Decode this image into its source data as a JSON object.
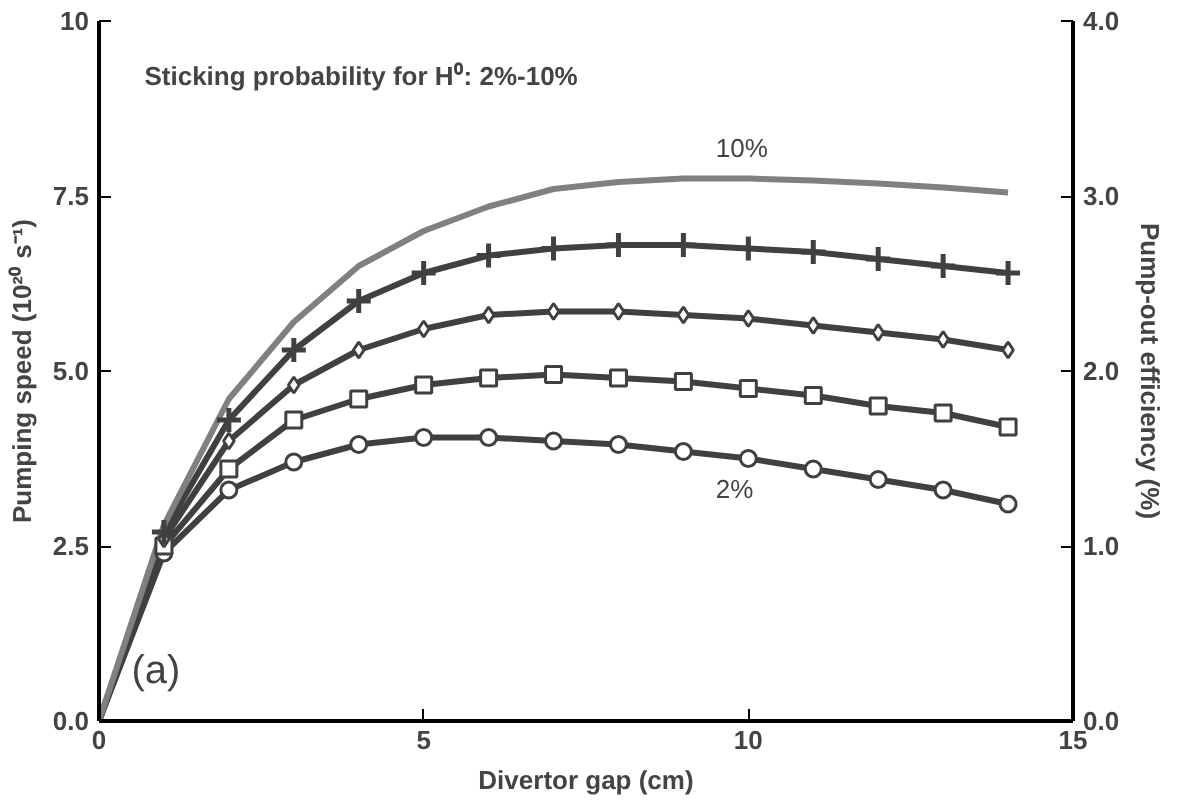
{
  "chart_data": {
    "type": "line",
    "title": "Sticking probability for H⁰: 2%-10%",
    "xlabel": "Divertor gap (cm)",
    "ylabel": "Pumping speed (10²⁰ s⁻¹)",
    "y2label": "Pump-out efficiency (%)",
    "x": [
      0,
      1,
      2,
      3,
      4,
      5,
      6,
      7,
      8,
      9,
      10,
      11,
      12,
      13,
      14
    ],
    "xlim": [
      0,
      15
    ],
    "xticks": [
      0,
      5,
      10,
      15
    ],
    "ylim": [
      0,
      10
    ],
    "yticks": [
      {
        "value": 0,
        "label": "0.0"
      },
      {
        "value": 2.5,
        "label": "2.5"
      },
      {
        "value": 5,
        "label": "5.0"
      },
      {
        "value": 7.5,
        "label": "7.5"
      },
      {
        "value": 10,
        "label": "10"
      }
    ],
    "y2lim": [
      0,
      4
    ],
    "y2ticks": [
      {
        "value": 0,
        "label": "0.0"
      },
      {
        "value": 1,
        "label": "1.0"
      },
      {
        "value": 2,
        "label": "2.0"
      },
      {
        "value": 3,
        "label": "3.0"
      },
      {
        "value": 4,
        "label": "4.0"
      }
    ],
    "grid": false,
    "series": [
      {
        "color": "#808080",
        "marker": "none",
        "values": [
          0,
          2.8,
          4.6,
          5.7,
          6.5,
          7.0,
          7.35,
          7.6,
          7.7,
          7.75,
          7.75,
          7.72,
          7.68,
          7.62,
          7.55
        ]
      },
      {
        "color": "#404040",
        "marker": "cross",
        "values": [
          0,
          2.7,
          4.3,
          5.3,
          6.0,
          6.4,
          6.65,
          6.75,
          6.8,
          6.8,
          6.75,
          6.7,
          6.6,
          6.5,
          6.4
        ]
      },
      {
        "color": "#404040",
        "marker": "diamond",
        "values": [
          0,
          2.6,
          4.0,
          4.8,
          5.3,
          5.6,
          5.8,
          5.85,
          5.85,
          5.8,
          5.75,
          5.65,
          5.55,
          5.45,
          5.3
        ]
      },
      {
        "color": "#404040",
        "marker": "square",
        "values": [
          0,
          2.5,
          3.6,
          4.3,
          4.6,
          4.8,
          4.9,
          4.95,
          4.9,
          4.85,
          4.75,
          4.65,
          4.5,
          4.4,
          4.2
        ]
      },
      {
        "color": "#404040",
        "marker": "circle",
        "values": [
          0,
          2.4,
          3.3,
          3.7,
          3.95,
          4.05,
          4.05,
          4.0,
          3.95,
          3.85,
          3.75,
          3.6,
          3.45,
          3.3,
          3.1
        ]
      }
    ],
    "annotations": [
      {
        "text": "10%",
        "x": 9.5,
        "y": 7.75
      },
      {
        "text": "2%",
        "x": 9.5,
        "y": 3.85
      },
      "(a)"
    ]
  }
}
